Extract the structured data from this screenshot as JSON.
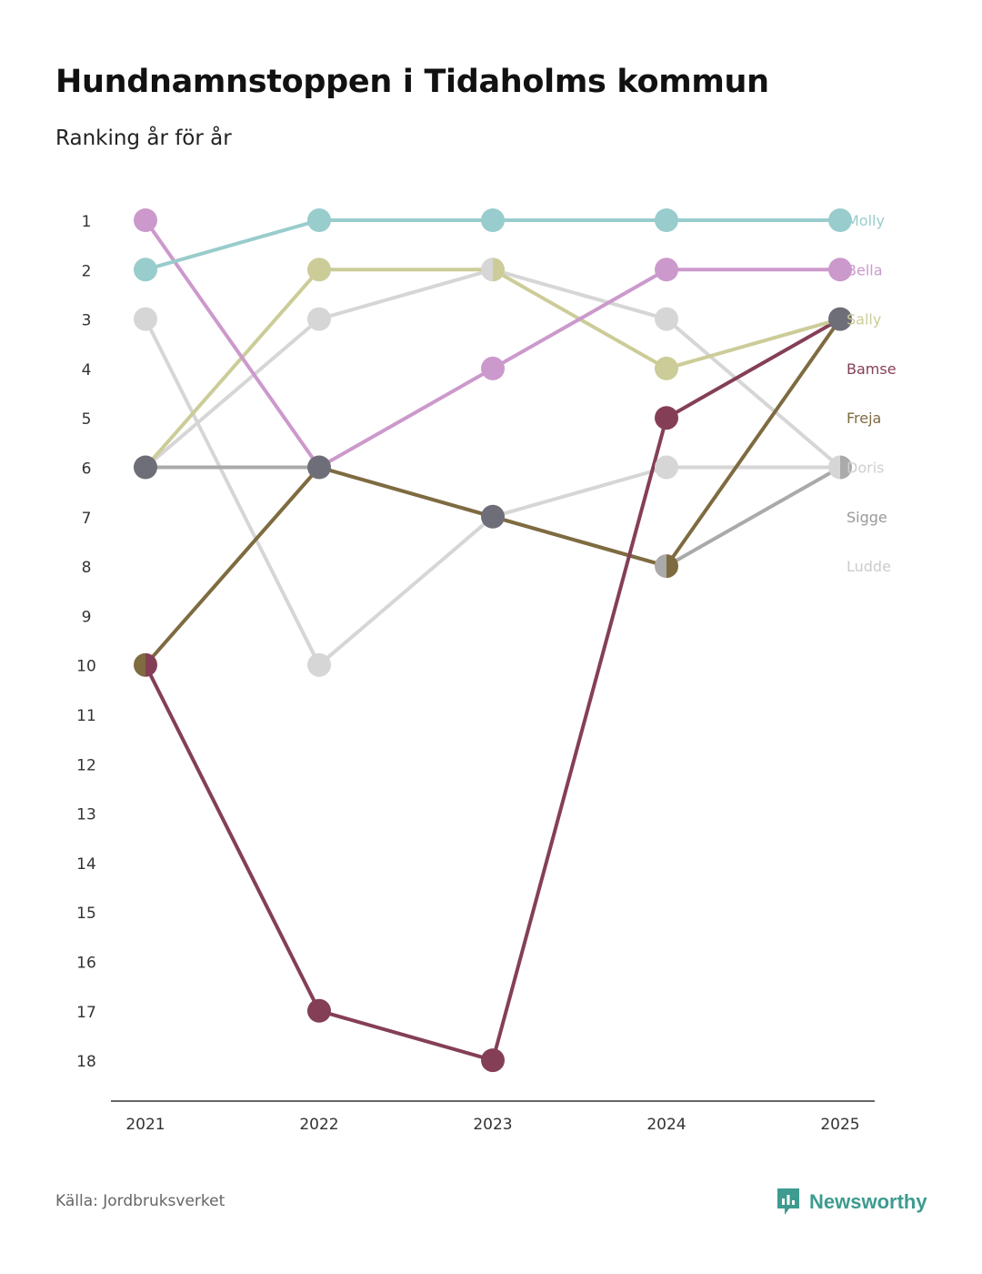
{
  "title": "Hundnamnstoppen i Tidaholms kommun",
  "subtitle": "Ranking år för år",
  "source": "Källa: Jordbruksverket",
  "brand": "Newsworthy",
  "colors": {
    "axis": "#333333",
    "tick_text": "#333333",
    "brand": "#3d9b8f"
  },
  "chart_data": {
    "type": "line",
    "title": "Hundnamnstoppen i Tidaholms kommun",
    "subtitle": "Ranking år för år",
    "xlabel": "",
    "ylabel": "",
    "x": [
      "2021",
      "2022",
      "2023",
      "2024",
      "2025"
    ],
    "y_ticks": [
      "1",
      "2",
      "3",
      "4",
      "5",
      "6",
      "7",
      "8",
      "9",
      "10",
      "11",
      "12",
      "13",
      "14",
      "15",
      "16",
      "17",
      "18"
    ],
    "ylim": [
      1,
      18
    ],
    "y_inverted": true,
    "grid": false,
    "legend": "right end labels",
    "series": [
      {
        "name": "Ludde",
        "color": "#d6d6d6",
        "values": [
          3,
          10,
          7,
          6,
          6
        ]
      },
      {
        "name": "Doris",
        "color": "#d6d6d6",
        "values": [
          6,
          3,
          2,
          3,
          6
        ]
      },
      {
        "name": "Sigge",
        "color": "#aaaaaa",
        "values": [
          6,
          6,
          7,
          8,
          6
        ]
      },
      {
        "name": "Freja",
        "color": "#7e6b40",
        "values": [
          10,
          6,
          7,
          8,
          3
        ]
      },
      {
        "name": "Bamse",
        "color": "#843f56",
        "values": [
          10,
          17,
          18,
          5,
          3
        ]
      },
      {
        "name": "Sally",
        "color": "#cccc99",
        "values": [
          6,
          2,
          2,
          4,
          3
        ]
      },
      {
        "name": "Bella",
        "color": "#cc99cc",
        "values": [
          1,
          6,
          4,
          2,
          2
        ]
      },
      {
        "name": "Molly",
        "color": "#99cccc",
        "values": [
          2,
          1,
          1,
          1,
          1
        ]
      }
    ],
    "end_labels": [
      "Molly",
      "Bella",
      "Sally",
      "Bamse",
      "Freja",
      "Doris",
      "Sigge",
      "Ludde"
    ],
    "shared_point_color": "#6e6e78"
  }
}
